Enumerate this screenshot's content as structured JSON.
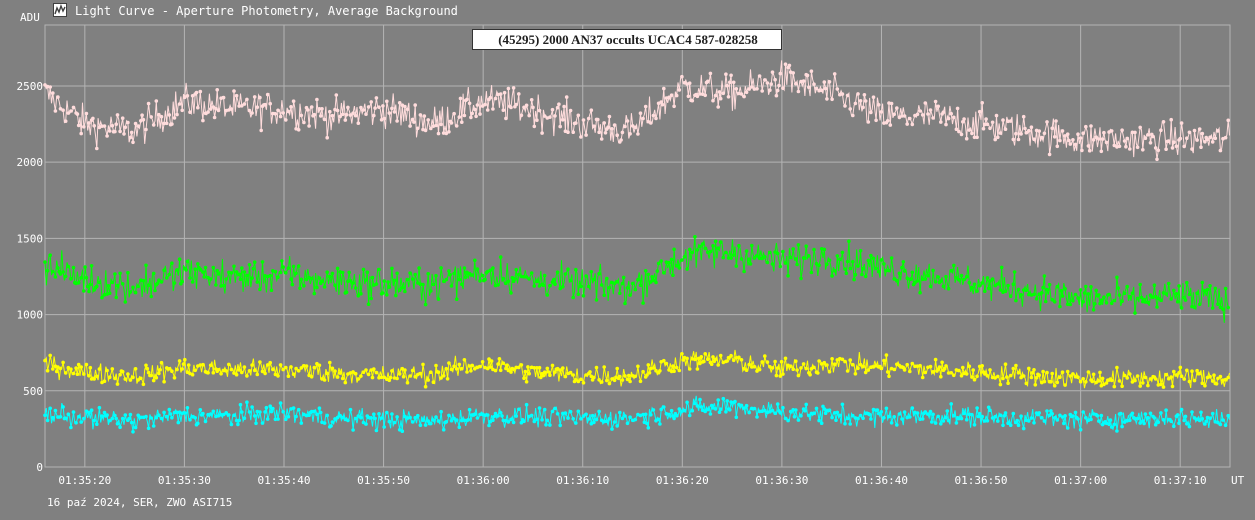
{
  "window": {
    "title": "Light Curve - Aperture Photometry, Average Background",
    "icon": "graph-icon"
  },
  "footer": "16 paź 2024, SER, ZWO ASI715",
  "colors": {
    "background": "#808080",
    "grid": "#b4b4b4",
    "axis_text": "#ffffff"
  },
  "chart_data": {
    "type": "line",
    "title": "(45295) 2000 AN37 occults UCAC4 587-028258",
    "ylabel": "ADU",
    "xlabel": "UT",
    "x_unit": "time UT (hh:mm:ss)",
    "xlim": [
      "01:35:16",
      "01:37:15"
    ],
    "ylim": [
      0,
      2900
    ],
    "y_ticks": [
      0,
      500,
      1000,
      1500,
      2000,
      2500
    ],
    "x_ticks": [
      "01:35:20",
      "01:35:30",
      "01:35:40",
      "01:35:50",
      "01:36:00",
      "01:36:10",
      "01:36:20",
      "01:36:30",
      "01:36:40",
      "01:36:50",
      "01:37:00",
      "01:37:10"
    ],
    "grid": true,
    "series": [
      {
        "color": "#ffdcdc",
        "x": [
          "01:35:16",
          "01:35:20",
          "01:35:25",
          "01:35:30",
          "01:35:35",
          "01:35:40",
          "01:35:45",
          "01:35:50",
          "01:35:55",
          "01:36:00",
          "01:36:05",
          "01:36:10",
          "01:36:15",
          "01:36:20",
          "01:36:25",
          "01:36:30",
          "01:36:35",
          "01:36:40",
          "01:36:45",
          "01:36:50",
          "01:36:55",
          "01:37:00",
          "01:37:05",
          "01:37:10",
          "01:37:15"
        ],
        "values": [
          2450,
          2250,
          2200,
          2400,
          2350,
          2350,
          2300,
          2350,
          2250,
          2400,
          2350,
          2250,
          2200,
          2500,
          2450,
          2550,
          2450,
          2300,
          2300,
          2250,
          2200,
          2150,
          2150,
          2150,
          2150
        ]
      },
      {
        "color": "#00ff00",
        "x": [
          "01:35:16",
          "01:35:20",
          "01:35:25",
          "01:35:30",
          "01:35:35",
          "01:35:40",
          "01:35:45",
          "01:35:50",
          "01:35:55",
          "01:36:00",
          "01:36:05",
          "01:36:10",
          "01:36:15",
          "01:36:20",
          "01:36:25",
          "01:36:30",
          "01:36:35",
          "01:36:40",
          "01:36:45",
          "01:36:50",
          "01:36:55",
          "01:37:00",
          "01:37:05",
          "01:37:10",
          "01:37:15"
        ],
        "values": [
          1320,
          1230,
          1180,
          1280,
          1240,
          1260,
          1220,
          1200,
          1200,
          1280,
          1230,
          1200,
          1180,
          1380,
          1420,
          1350,
          1380,
          1300,
          1260,
          1200,
          1160,
          1100,
          1100,
          1120,
          1080
        ]
      },
      {
        "color": "#ffff00",
        "x": [
          "01:35:16",
          "01:35:20",
          "01:35:25",
          "01:35:30",
          "01:35:35",
          "01:35:40",
          "01:35:45",
          "01:35:50",
          "01:35:55",
          "01:36:00",
          "01:36:05",
          "01:36:10",
          "01:36:15",
          "01:36:20",
          "01:36:25",
          "01:36:30",
          "01:36:35",
          "01:36:40",
          "01:36:45",
          "01:36:50",
          "01:36:55",
          "01:37:00",
          "01:37:05",
          "01:37:10",
          "01:37:15"
        ],
        "values": [
          680,
          620,
          600,
          650,
          640,
          640,
          620,
          600,
          610,
          680,
          620,
          600,
          600,
          700,
          700,
          640,
          680,
          660,
          640,
          620,
          600,
          580,
          580,
          590,
          580
        ]
      },
      {
        "color": "#00ffff",
        "x": [
          "01:35:16",
          "01:35:20",
          "01:35:25",
          "01:35:30",
          "01:35:35",
          "01:35:40",
          "01:35:45",
          "01:35:50",
          "01:35:55",
          "01:36:00",
          "01:36:05",
          "01:36:10",
          "01:36:15",
          "01:36:20",
          "01:36:25",
          "01:36:30",
          "01:36:35",
          "01:36:40",
          "01:36:45",
          "01:36:50",
          "01:36:55",
          "01:37:00",
          "01:37:05",
          "01:37:10",
          "01:37:15"
        ],
        "values": [
          350,
          320,
          300,
          340,
          330,
          360,
          320,
          310,
          300,
          340,
          330,
          320,
          320,
          380,
          400,
          360,
          340,
          330,
          340,
          330,
          320,
          310,
          320,
          320,
          310
        ]
      }
    ]
  }
}
